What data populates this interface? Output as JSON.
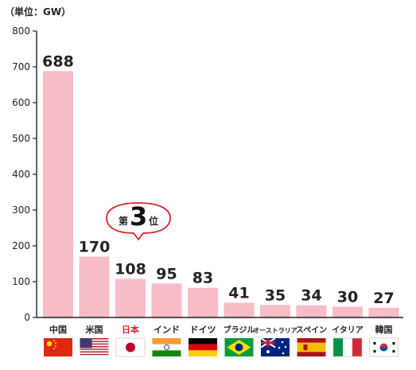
{
  "unit_label": "（単位：GW）",
  "badge": {
    "prefix": "第",
    "rank": "3",
    "suffix": "位"
  },
  "colors": {
    "bar": "#f7bcc6",
    "axis": "#222222",
    "highlight_text": "#d9242d",
    "badge_border": "#d9242d"
  },
  "chart_data": {
    "type": "bar",
    "categories": [
      "中国",
      "米国",
      "日本",
      "インド",
      "ドイツ",
      "ブラジル",
      "オーストラリア",
      "スペイン",
      "イタリア",
      "韓国"
    ],
    "values": [
      688,
      170,
      108,
      95,
      83,
      41,
      35,
      34,
      30,
      27
    ],
    "value_labels": [
      "688",
      "170",
      "108",
      "95",
      "83",
      "41",
      "35",
      "34",
      "30",
      "27"
    ],
    "yticks": [
      0,
      100,
      200,
      300,
      400,
      500,
      600,
      700,
      800
    ],
    "ylim": [
      0,
      800
    ],
    "highlight_category": "日本",
    "grid": false,
    "flags": [
      "china-flag-icon",
      "usa-flag-icon",
      "japan-flag-icon",
      "india-flag-icon",
      "germany-flag-icon",
      "brazil-flag-icon",
      "australia-flag-icon",
      "spain-flag-icon",
      "italy-flag-icon",
      "korea-flag-icon"
    ]
  }
}
